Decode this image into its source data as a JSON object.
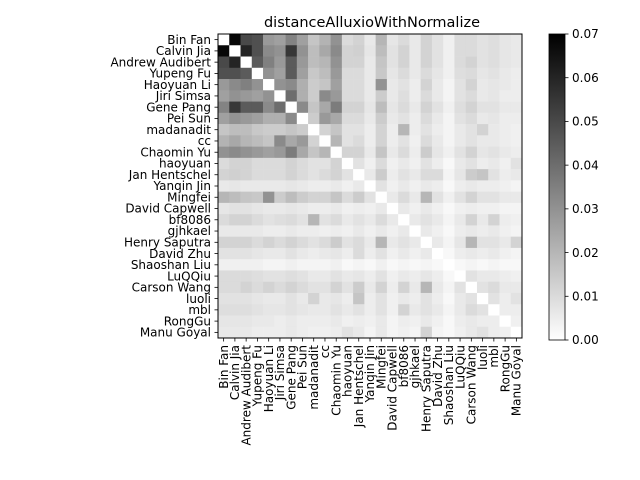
{
  "chart_data": {
    "type": "heatmap",
    "title": "distanceAlluxioWithNormalize",
    "labels": [
      "Bin Fan",
      "Calvin Jia",
      "Andrew Audibert",
      "Yupeng Fu",
      "Haoyuan Li",
      "Jiri Simsa",
      "Gene Pang",
      "Pei Sun",
      "madanadit",
      "cc",
      "Chaomin Yu",
      "haoyuan",
      "Jan Hentschel",
      "Yanqin Jin",
      "Mingfei",
      "David Capwell",
      "bf8086",
      "gjhkael",
      "Henry Saputra",
      "David Zhu",
      "Shaoshan Liu",
      "LuQQiu",
      "Carson Wang",
      "luoli",
      "mbl",
      "RongGu",
      "Manu Goyal"
    ],
    "colormap": "gray_r",
    "colorbar": {
      "vmin": 0.0,
      "vmax": 0.07,
      "ticks": [
        "0.00",
        "0.01",
        "0.02",
        "0.03",
        "0.04",
        "0.05",
        "0.06",
        "0.07"
      ]
    },
    "legend_position": "right",
    "matrix": [
      [
        0,
        0.068,
        0.05,
        0.048,
        0.028,
        0.026,
        0.034,
        0.026,
        0.016,
        0.021,
        0.03,
        0.01,
        0.012,
        0.006,
        0.02,
        0.007,
        0.01,
        0.006,
        0.012,
        0.008,
        0.004,
        0.01,
        0.01,
        0.008,
        0.009,
        0.007,
        0.006
      ],
      [
        0.068,
        0,
        0.06,
        0.048,
        0.032,
        0.03,
        0.055,
        0.03,
        0.018,
        0.024,
        0.032,
        0.012,
        0.013,
        0.007,
        0.018,
        0.008,
        0.012,
        0.006,
        0.012,
        0.008,
        0.004,
        0.01,
        0.01,
        0.008,
        0.009,
        0.007,
        0.006
      ],
      [
        0.05,
        0.06,
        0,
        0.045,
        0.035,
        0.028,
        0.045,
        0.028,
        0.018,
        0.02,
        0.03,
        0.012,
        0.012,
        0.006,
        0.016,
        0.008,
        0.012,
        0.006,
        0.012,
        0.008,
        0.004,
        0.01,
        0.012,
        0.008,
        0.009,
        0.007,
        0.006
      ],
      [
        0.048,
        0.048,
        0.045,
        0,
        0.03,
        0.026,
        0.045,
        0.026,
        0.015,
        0.018,
        0.028,
        0.01,
        0.01,
        0.006,
        0.015,
        0.007,
        0.01,
        0.006,
        0.01,
        0.007,
        0.004,
        0.009,
        0.01,
        0.007,
        0.008,
        0.006,
        0.005
      ],
      [
        0.028,
        0.032,
        0.035,
        0.03,
        0,
        0.03,
        0.032,
        0.022,
        0.014,
        0.016,
        0.026,
        0.01,
        0.01,
        0.006,
        0.03,
        0.006,
        0.008,
        0.005,
        0.012,
        0.006,
        0.003,
        0.008,
        0.012,
        0.006,
        0.007,
        0.006,
        0.005
      ],
      [
        0.026,
        0.03,
        0.028,
        0.026,
        0.03,
        0,
        0.04,
        0.022,
        0.014,
        0.032,
        0.028,
        0.01,
        0.01,
        0.006,
        0.014,
        0.006,
        0.009,
        0.005,
        0.01,
        0.006,
        0.003,
        0.008,
        0.01,
        0.006,
        0.007,
        0.005,
        0.005
      ],
      [
        0.034,
        0.055,
        0.045,
        0.045,
        0.032,
        0.04,
        0,
        0.032,
        0.016,
        0.024,
        0.036,
        0.012,
        0.012,
        0.007,
        0.018,
        0.007,
        0.01,
        0.006,
        0.012,
        0.008,
        0.004,
        0.009,
        0.012,
        0.008,
        0.008,
        0.006,
        0.006
      ],
      [
        0.026,
        0.03,
        0.028,
        0.026,
        0.022,
        0.022,
        0.032,
        0,
        0.014,
        0.028,
        0.024,
        0.01,
        0.01,
        0.006,
        0.014,
        0.006,
        0.008,
        0.005,
        0.01,
        0.006,
        0.003,
        0.008,
        0.01,
        0.006,
        0.007,
        0.005,
        0.005
      ],
      [
        0.016,
        0.018,
        0.018,
        0.015,
        0.014,
        0.014,
        0.016,
        0.014,
        0,
        0.012,
        0.016,
        0.008,
        0.008,
        0.005,
        0.012,
        0.005,
        0.02,
        0.005,
        0.008,
        0.005,
        0.003,
        0.006,
        0.008,
        0.012,
        0.006,
        0.005,
        0.004
      ],
      [
        0.021,
        0.024,
        0.02,
        0.018,
        0.016,
        0.032,
        0.024,
        0.028,
        0.012,
        0,
        0.02,
        0.008,
        0.01,
        0.005,
        0.012,
        0.005,
        0.008,
        0.004,
        0.01,
        0.006,
        0.003,
        0.006,
        0.008,
        0.006,
        0.006,
        0.005,
        0.004
      ],
      [
        0.03,
        0.032,
        0.03,
        0.028,
        0.026,
        0.028,
        0.036,
        0.024,
        0.016,
        0.02,
        0,
        0.012,
        0.012,
        0.006,
        0.016,
        0.006,
        0.01,
        0.005,
        0.014,
        0.007,
        0.004,
        0.008,
        0.012,
        0.007,
        0.008,
        0.006,
        0.005
      ],
      [
        0.01,
        0.012,
        0.012,
        0.01,
        0.01,
        0.01,
        0.012,
        0.01,
        0.008,
        0.008,
        0.012,
        0,
        0.008,
        0.004,
        0.01,
        0.004,
        0.006,
        0.004,
        0.008,
        0.005,
        0.002,
        0.006,
        0.008,
        0.005,
        0.006,
        0.004,
        0.008
      ],
      [
        0.012,
        0.013,
        0.012,
        0.01,
        0.01,
        0.01,
        0.012,
        0.01,
        0.008,
        0.01,
        0.012,
        0.008,
        0,
        0.006,
        0.014,
        0.005,
        0.008,
        0.006,
        0.01,
        0.01,
        0.003,
        0.007,
        0.014,
        0.016,
        0.008,
        0.005,
        0.006
      ],
      [
        0.006,
        0.007,
        0.006,
        0.006,
        0.006,
        0.006,
        0.007,
        0.006,
        0.005,
        0.005,
        0.006,
        0.004,
        0.006,
        0,
        0.008,
        0.004,
        0.006,
        0.004,
        0.006,
        0.005,
        0.002,
        0.005,
        0.006,
        0.005,
        0.005,
        0.004,
        0.003
      ],
      [
        0.02,
        0.018,
        0.016,
        0.015,
        0.03,
        0.014,
        0.018,
        0.014,
        0.012,
        0.012,
        0.016,
        0.01,
        0.014,
        0.008,
        0,
        0.006,
        0.01,
        0.006,
        0.02,
        0.008,
        0.004,
        0.008,
        0.012,
        0.008,
        0.008,
        0.006,
        0.006
      ],
      [
        0.007,
        0.008,
        0.008,
        0.007,
        0.006,
        0.006,
        0.007,
        0.006,
        0.005,
        0.005,
        0.006,
        0.004,
        0.005,
        0.004,
        0.006,
        0,
        0.006,
        0.004,
        0.006,
        0.004,
        0.002,
        0.004,
        0.005,
        0.004,
        0.004,
        0.003,
        0.003
      ],
      [
        0.01,
        0.012,
        0.012,
        0.01,
        0.008,
        0.009,
        0.01,
        0.008,
        0.02,
        0.008,
        0.01,
        0.006,
        0.008,
        0.006,
        0.01,
        0.006,
        0,
        0.006,
        0.008,
        0.006,
        0.003,
        0.006,
        0.012,
        0.006,
        0.012,
        0.005,
        0.004
      ],
      [
        0.006,
        0.006,
        0.006,
        0.006,
        0.005,
        0.005,
        0.006,
        0.005,
        0.005,
        0.004,
        0.005,
        0.004,
        0.006,
        0.004,
        0.006,
        0.004,
        0.006,
        0,
        0.006,
        0.004,
        0.002,
        0.005,
        0.006,
        0.005,
        0.006,
        0.004,
        0.003
      ],
      [
        0.012,
        0.012,
        0.012,
        0.01,
        0.012,
        0.01,
        0.012,
        0.01,
        0.008,
        0.01,
        0.014,
        0.008,
        0.01,
        0.006,
        0.02,
        0.006,
        0.008,
        0.006,
        0,
        0.006,
        0.003,
        0.007,
        0.02,
        0.008,
        0.008,
        0.006,
        0.012
      ],
      [
        0.008,
        0.008,
        0.008,
        0.007,
        0.006,
        0.006,
        0.008,
        0.006,
        0.005,
        0.006,
        0.007,
        0.005,
        0.01,
        0.005,
        0.008,
        0.004,
        0.006,
        0.004,
        0.006,
        0,
        0.002,
        0.005,
        0.006,
        0.005,
        0.006,
        0.004,
        0.003
      ],
      [
        0.004,
        0.004,
        0.004,
        0.004,
        0.003,
        0.003,
        0.004,
        0.003,
        0.003,
        0.003,
        0.004,
        0.002,
        0.003,
        0.002,
        0.004,
        0.002,
        0.003,
        0.002,
        0.003,
        0.002,
        0,
        0.002,
        0.003,
        0.002,
        0.003,
        0.002,
        0.002
      ],
      [
        0.01,
        0.01,
        0.01,
        0.009,
        0.008,
        0.008,
        0.009,
        0.008,
        0.006,
        0.006,
        0.008,
        0.006,
        0.007,
        0.005,
        0.008,
        0.004,
        0.006,
        0.005,
        0.007,
        0.005,
        0.002,
        0,
        0.008,
        0.006,
        0.006,
        0.005,
        0.004
      ],
      [
        0.01,
        0.01,
        0.012,
        0.01,
        0.012,
        0.01,
        0.012,
        0.01,
        0.008,
        0.008,
        0.012,
        0.008,
        0.014,
        0.006,
        0.012,
        0.005,
        0.012,
        0.006,
        0.02,
        0.006,
        0.003,
        0.008,
        0,
        0.008,
        0.01,
        0.006,
        0.006
      ],
      [
        0.008,
        0.008,
        0.008,
        0.007,
        0.006,
        0.006,
        0.008,
        0.006,
        0.012,
        0.006,
        0.007,
        0.005,
        0.016,
        0.005,
        0.008,
        0.004,
        0.006,
        0.005,
        0.008,
        0.005,
        0.002,
        0.006,
        0.008,
        0,
        0.008,
        0.005,
        0.008
      ],
      [
        0.009,
        0.009,
        0.009,
        0.008,
        0.007,
        0.007,
        0.008,
        0.007,
        0.006,
        0.006,
        0.008,
        0.006,
        0.008,
        0.005,
        0.008,
        0.004,
        0.012,
        0.006,
        0.008,
        0.006,
        0.003,
        0.006,
        0.01,
        0.008,
        0,
        0.005,
        0.005
      ],
      [
        0.007,
        0.007,
        0.007,
        0.006,
        0.006,
        0.005,
        0.006,
        0.005,
        0.005,
        0.005,
        0.006,
        0.004,
        0.005,
        0.004,
        0.006,
        0.003,
        0.005,
        0.004,
        0.006,
        0.004,
        0.002,
        0.005,
        0.006,
        0.005,
        0.005,
        0,
        0.004
      ],
      [
        0.006,
        0.006,
        0.006,
        0.005,
        0.005,
        0.005,
        0.006,
        0.005,
        0.004,
        0.004,
        0.005,
        0.008,
        0.006,
        0.003,
        0.006,
        0.003,
        0.004,
        0.003,
        0.012,
        0.003,
        0.002,
        0.004,
        0.006,
        0.008,
        0.005,
        0.004,
        0
      ]
    ]
  }
}
